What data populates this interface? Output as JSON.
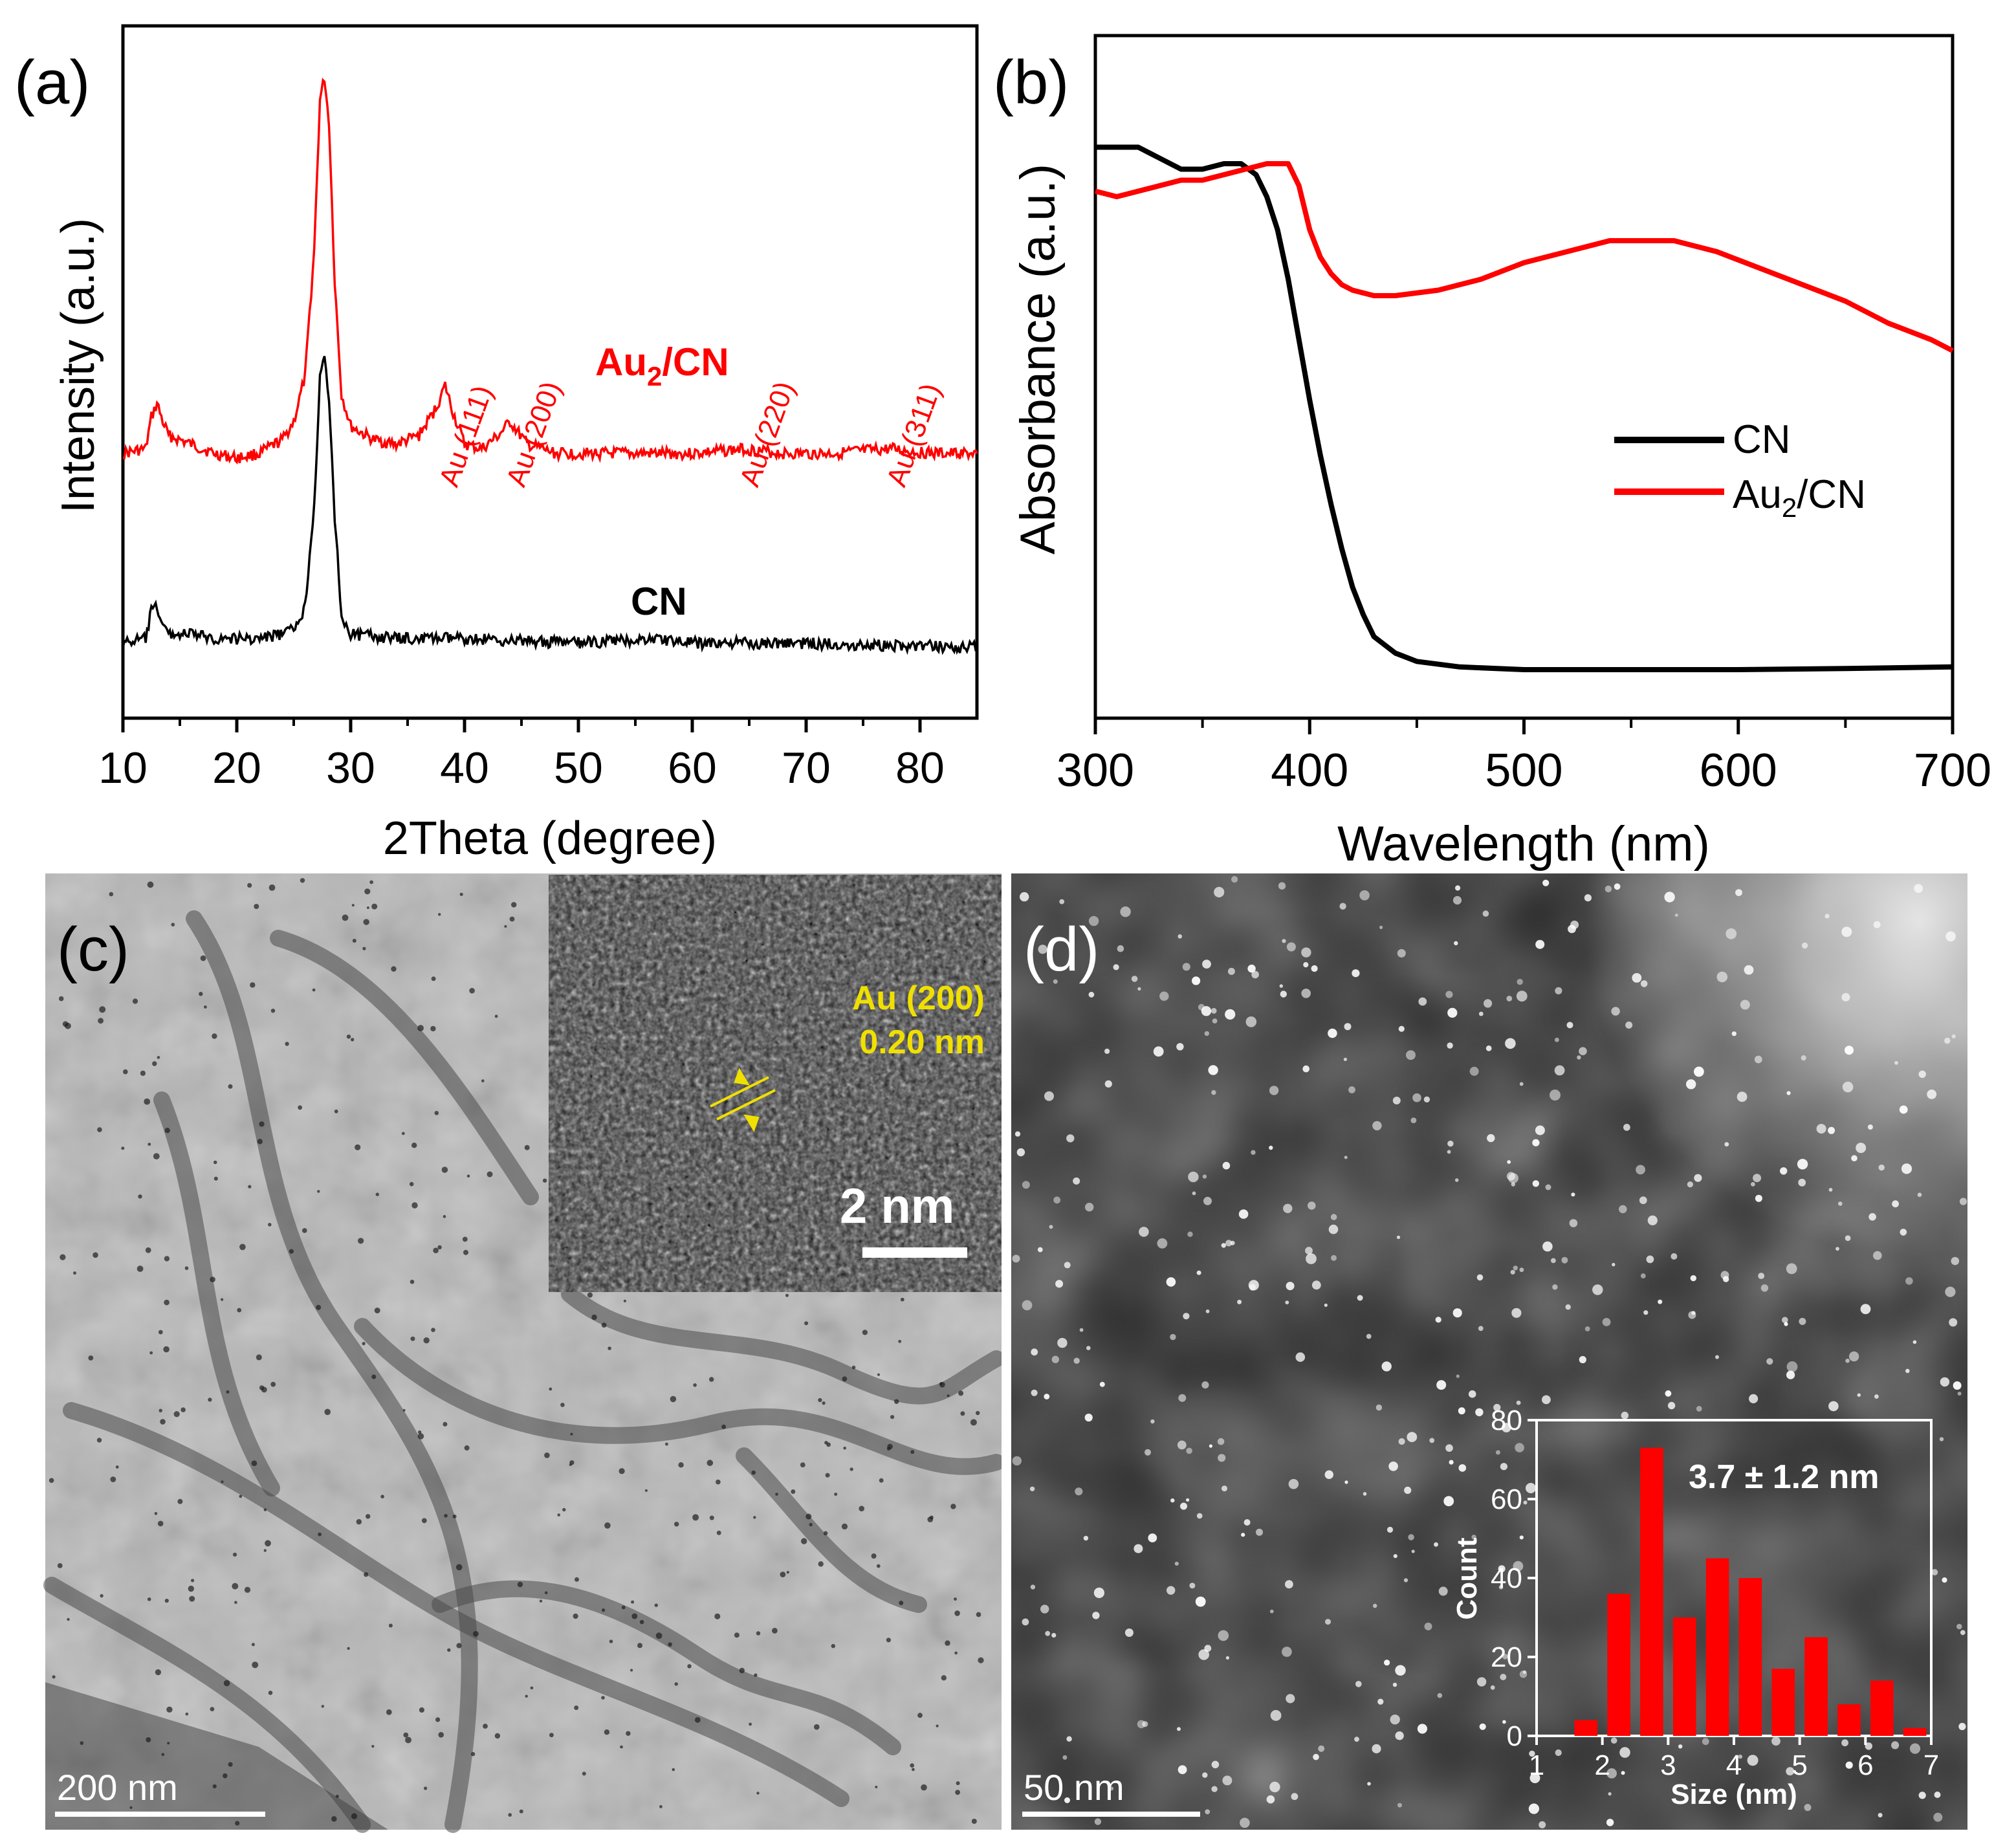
{
  "colors": {
    "cn": "#000000",
    "au": "#ff0000",
    "hist": "#ff0000",
    "hrtem_label": "#ffee00"
  },
  "panels": {
    "a": {
      "letter": "(a)"
    },
    "b": {
      "letter": "(b)"
    },
    "c": {
      "letter": "(c)",
      "scalebar": "200 nm",
      "inset_label_line1": "Au (200)",
      "inset_label_line2": "0.20 nm",
      "inset_scalebar": "2 nm"
    },
    "d": {
      "letter": "(d)",
      "scalebar": "50 nm"
    }
  },
  "chart_data": [
    {
      "id": "xrd",
      "type": "line",
      "xlabel": "2Theta (degree)",
      "ylabel": "Intensity (a.u.)",
      "xlim": [
        10,
        85
      ],
      "xticks": [
        10,
        20,
        30,
        40,
        50,
        60,
        70,
        80
      ],
      "series": [
        {
          "name": "Au2/CN",
          "label_main": "Au",
          "label_sub": "2",
          "label_tail": "/CN",
          "color": "#ff0000",
          "x": [
            10,
            12,
            12.5,
            13,
            13.5,
            14,
            16,
            18,
            20,
            22,
            24,
            25,
            26,
            26.8,
            27.3,
            27.7,
            28.1,
            28.6,
            29.2,
            30,
            32,
            34,
            36,
            37.5,
            38.3,
            39,
            40,
            41.5,
            43,
            44,
            45.5,
            48,
            52,
            56,
            60,
            64.5,
            68,
            72,
            77.5,
            81,
            85
          ],
          "y": [
            0.17,
            0.18,
            0.25,
            0.28,
            0.24,
            0.21,
            0.19,
            0.17,
            0.16,
            0.17,
            0.2,
            0.24,
            0.34,
            0.62,
            0.95,
            1.0,
            0.9,
            0.55,
            0.3,
            0.23,
            0.2,
            0.19,
            0.21,
            0.27,
            0.32,
            0.26,
            0.19,
            0.18,
            0.21,
            0.24,
            0.19,
            0.17,
            0.17,
            0.17,
            0.17,
            0.18,
            0.17,
            0.17,
            0.18,
            0.17,
            0.17
          ]
        },
        {
          "name": "CN",
          "label_main": "CN",
          "color": "#000000",
          "x": [
            10,
            12,
            12.5,
            13,
            13.5,
            14,
            16,
            18,
            20,
            22,
            24,
            25,
            26,
            26.8,
            27.3,
            27.7,
            28.1,
            28.6,
            29.2,
            30,
            34,
            40,
            50,
            57,
            60,
            70,
            85
          ],
          "y": [
            0.02,
            0.03,
            0.09,
            0.1,
            0.06,
            0.04,
            0.04,
            0.03,
            0.03,
            0.03,
            0.04,
            0.05,
            0.1,
            0.33,
            0.6,
            0.65,
            0.55,
            0.3,
            0.08,
            0.04,
            0.03,
            0.03,
            0.02,
            0.03,
            0.02,
            0.02,
            0.01
          ]
        }
      ],
      "annotations": [
        {
          "text": "Au (111)",
          "x": 38.3
        },
        {
          "text": "Au (200)",
          "x": 44.2
        },
        {
          "text": "Au (220)",
          "x": 64.7
        },
        {
          "text": "Au (311)",
          "x": 77.6
        }
      ]
    },
    {
      "id": "uvvis",
      "type": "line",
      "xlabel": "Wavelength (nm)",
      "ylabel": "Absorbance (a.u.)",
      "xlim": [
        300,
        700
      ],
      "xticks": [
        300,
        400,
        500,
        600,
        700
      ],
      "legend": {
        "position": "right",
        "entries": [
          "CN",
          "Au2/CN"
        ]
      },
      "series": [
        {
          "name": "CN",
          "color": "#000000",
          "x": [
            300,
            320,
            330,
            340,
            350,
            360,
            368,
            375,
            380,
            385,
            390,
            395,
            400,
            405,
            410,
            415,
            420,
            425,
            430,
            440,
            450,
            470,
            500,
            550,
            600,
            650,
            700
          ],
          "y": [
            0.95,
            0.95,
            0.93,
            0.91,
            0.91,
            0.92,
            0.92,
            0.9,
            0.86,
            0.8,
            0.71,
            0.6,
            0.49,
            0.39,
            0.3,
            0.22,
            0.15,
            0.1,
            0.06,
            0.03,
            0.015,
            0.005,
            0.0,
            0.0,
            0.0,
            0.002,
            0.005
          ]
        },
        {
          "name": "Au2/CN",
          "color": "#ff0000",
          "x": [
            300,
            310,
            320,
            330,
            340,
            350,
            360,
            370,
            380,
            385,
            390,
            395,
            400,
            405,
            410,
            415,
            420,
            430,
            440,
            460,
            480,
            500,
            520,
            540,
            555,
            570,
            590,
            610,
            630,
            650,
            670,
            690,
            700
          ],
          "y": [
            0.87,
            0.86,
            0.87,
            0.88,
            0.89,
            0.89,
            0.9,
            0.91,
            0.92,
            0.92,
            0.92,
            0.88,
            0.8,
            0.75,
            0.72,
            0.7,
            0.69,
            0.68,
            0.68,
            0.69,
            0.71,
            0.74,
            0.76,
            0.78,
            0.78,
            0.78,
            0.76,
            0.73,
            0.7,
            0.67,
            0.63,
            0.6,
            0.58
          ]
        }
      ]
    },
    {
      "id": "size_histogram",
      "type": "bar",
      "xlabel": "Size (nm)",
      "ylabel": "Count",
      "xlim": [
        1,
        7
      ],
      "ylim": [
        0,
        80
      ],
      "xticks": [
        1,
        2,
        3,
        4,
        5,
        6,
        7
      ],
      "yticks": [
        0,
        20,
        40,
        60,
        80
      ],
      "annotation": "3.7 ± 1.2 nm",
      "bin_width": 0.35,
      "centers": [
        1.75,
        2.25,
        2.75,
        3.25,
        3.75,
        4.25,
        4.75,
        5.25,
        5.75,
        6.25,
        6.75
      ],
      "values": [
        4,
        36,
        73,
        30,
        45,
        40,
        17,
        25,
        8,
        14,
        2
      ]
    }
  ]
}
